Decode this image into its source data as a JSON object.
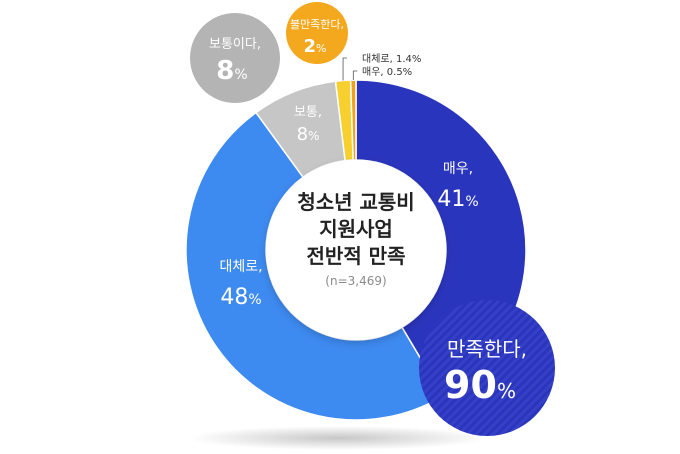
{
  "chart_data": {
    "type": "pie",
    "variant": "donut",
    "title": [
      "청소년 교통비",
      "지원사업",
      "전반적 만족"
    ],
    "subtitle": "(n=3,469)",
    "slices": [
      {
        "label": "매우,",
        "value": 41,
        "value_text": "41",
        "color": "#2a35bd"
      },
      {
        "label": "대체로,",
        "value": 48,
        "value_text": "48",
        "color": "#3d8af0"
      },
      {
        "label": "보통,",
        "value": 8,
        "value_text": "8",
        "color": "#c6c6c6"
      },
      {
        "label": "대체로,",
        "value": 1.4,
        "value_text": "1.4%",
        "color": "#f7cf2f"
      },
      {
        "label": "매우,",
        "value": 0.5,
        "value_text": "0.5%",
        "color": "#f0a21a"
      }
    ],
    "percent_sign": "%",
    "summary_bubbles": [
      {
        "label": "만족한다,",
        "value": 90,
        "value_text": "90",
        "color": "#2a35bd"
      },
      {
        "label": "보통이다,",
        "value": 8,
        "value_text": "8",
        "color": "#b4b4b4"
      },
      {
        "label": "불만족한다,",
        "value": 2,
        "value_text": "2",
        "color": "#f4a81d"
      }
    ]
  }
}
